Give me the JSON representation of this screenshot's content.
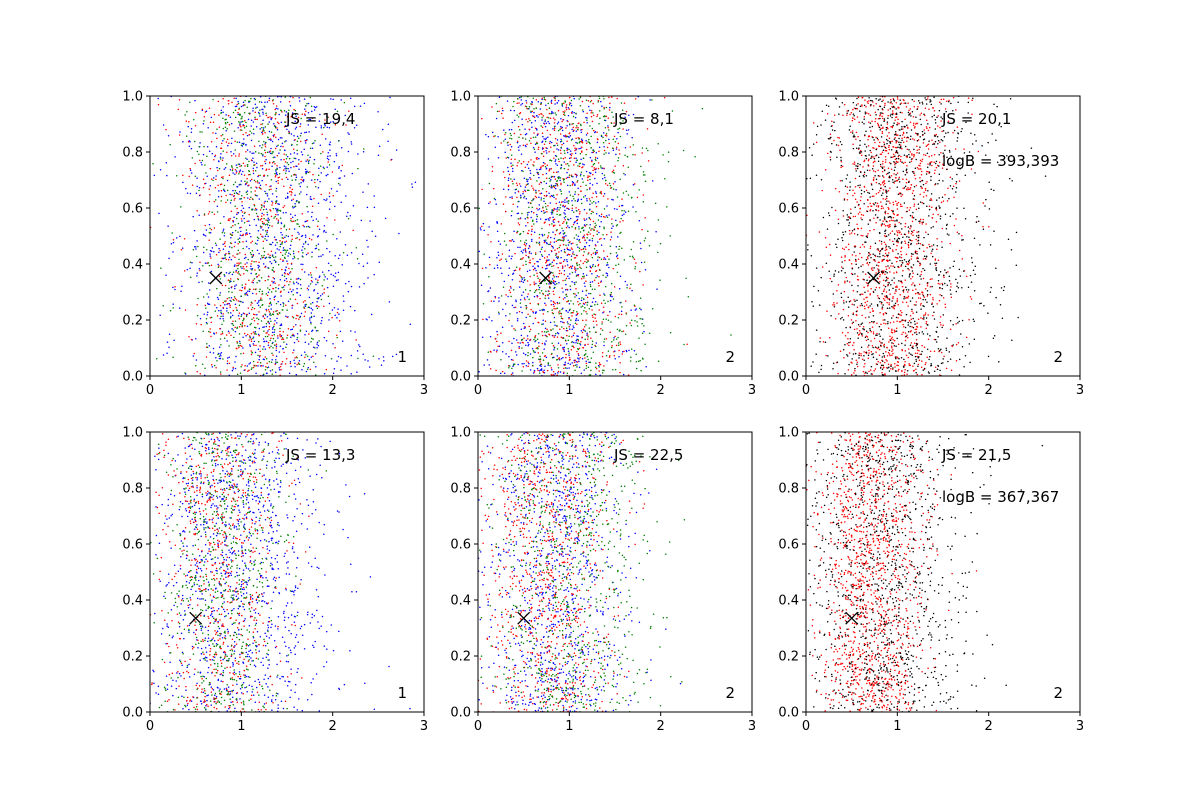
{
  "figure": {
    "colors": {
      "blue": "#0000ff",
      "green": "#008000",
      "red": "#ff0000",
      "black": "#000000",
      "marker": "#000000"
    }
  },
  "chart_data": [
    {
      "type": "scatter",
      "xlim": [
        0,
        3
      ],
      "ylim": [
        0,
        1
      ],
      "xticks": [
        "0",
        "1",
        "2",
        "3"
      ],
      "yticks": [
        "0.0",
        "0.2",
        "0.4",
        "0.6",
        "0.8",
        "1.0"
      ],
      "annotations": [
        "JS = 19,4"
      ],
      "corner_label": "1",
      "marker": {
        "x": 0.72,
        "y": 0.35
      },
      "series": [
        {
          "color": "#0000ff",
          "x_center": 1.35,
          "x_spread": 0.55,
          "count": 1100
        },
        {
          "color": "#ff0000",
          "x_center": 1.2,
          "x_spread": 0.4,
          "count": 650
        },
        {
          "color": "#008000",
          "x_center": 1.2,
          "x_spread": 0.38,
          "count": 650
        }
      ]
    },
    {
      "type": "scatter",
      "xlim": [
        0,
        3
      ],
      "ylim": [
        0,
        1
      ],
      "xticks": [
        "0",
        "1",
        "2",
        "3"
      ],
      "yticks": [
        "0.0",
        "0.2",
        "0.4",
        "0.6",
        "0.8",
        "1.0"
      ],
      "annotations": [
        "JS = 8,1"
      ],
      "corner_label": "2",
      "marker": {
        "x": 0.74,
        "y": 0.35
      },
      "series": [
        {
          "color": "#0000ff",
          "x_center": 0.85,
          "x_spread": 0.42,
          "count": 950
        },
        {
          "color": "#ff0000",
          "x_center": 0.9,
          "x_spread": 0.38,
          "count": 850
        },
        {
          "color": "#008000",
          "x_center": 1.05,
          "x_spread": 0.45,
          "count": 750
        }
      ]
    },
    {
      "type": "scatter",
      "xlim": [
        0,
        3
      ],
      "ylim": [
        0,
        1
      ],
      "xticks": [
        "0",
        "1",
        "2",
        "3"
      ],
      "yticks": [
        "0.0",
        "0.2",
        "0.4",
        "0.6",
        "0.8",
        "1.0"
      ],
      "annotations": [
        "JS = 20,1",
        "logB = 393,393"
      ],
      "corner_label": "2",
      "marker": {
        "x": 0.74,
        "y": 0.35
      },
      "series": [
        {
          "color": "#ff0000",
          "x_center": 0.95,
          "x_spread": 0.33,
          "count": 1300
        },
        {
          "color": "#000000",
          "x_center": 1.0,
          "x_spread": 0.5,
          "count": 1100
        }
      ]
    },
    {
      "type": "scatter",
      "xlim": [
        0,
        3
      ],
      "ylim": [
        0,
        1
      ],
      "xticks": [
        "0",
        "1",
        "2",
        "3"
      ],
      "yticks": [
        "0.0",
        "0.2",
        "0.4",
        "0.6",
        "0.8",
        "1.0"
      ],
      "annotations": [
        "JS = 13,3"
      ],
      "corner_label": "1",
      "marker": {
        "x": 0.5,
        "y": 0.335
      },
      "series": [
        {
          "color": "#0000ff",
          "x_center": 0.95,
          "x_spread": 0.5,
          "count": 1100
        },
        {
          "color": "#ff0000",
          "x_center": 0.75,
          "x_spread": 0.33,
          "count": 650
        },
        {
          "color": "#008000",
          "x_center": 0.8,
          "x_spread": 0.33,
          "count": 650
        }
      ]
    },
    {
      "type": "scatter",
      "xlim": [
        0,
        3
      ],
      "ylim": [
        0,
        1
      ],
      "xticks": [
        "0",
        "1",
        "2",
        "3"
      ],
      "yticks": [
        "0.0",
        "0.2",
        "0.4",
        "0.6",
        "0.8",
        "1.0"
      ],
      "annotations": [
        "JS = 22,5"
      ],
      "corner_label": "2",
      "marker": {
        "x": 0.5,
        "y": 0.335
      },
      "series": [
        {
          "color": "#0000ff",
          "x_center": 0.85,
          "x_spread": 0.4,
          "count": 950
        },
        {
          "color": "#ff0000",
          "x_center": 0.75,
          "x_spread": 0.35,
          "count": 850
        },
        {
          "color": "#008000",
          "x_center": 1.0,
          "x_spread": 0.45,
          "count": 750
        }
      ]
    },
    {
      "type": "scatter",
      "xlim": [
        0,
        3
      ],
      "ylim": [
        0,
        1
      ],
      "xticks": [
        "0",
        "1",
        "2",
        "3"
      ],
      "yticks": [
        "0.0",
        "0.2",
        "0.4",
        "0.6",
        "0.8",
        "1.0"
      ],
      "annotations": [
        "JS = 21,5",
        "logB = 367,367"
      ],
      "corner_label": "2",
      "marker": {
        "x": 0.5,
        "y": 0.335
      },
      "series": [
        {
          "color": "#ff0000",
          "x_center": 0.7,
          "x_spread": 0.3,
          "count": 1300
        },
        {
          "color": "#000000",
          "x_center": 0.85,
          "x_spread": 0.45,
          "count": 1100
        }
      ]
    }
  ]
}
